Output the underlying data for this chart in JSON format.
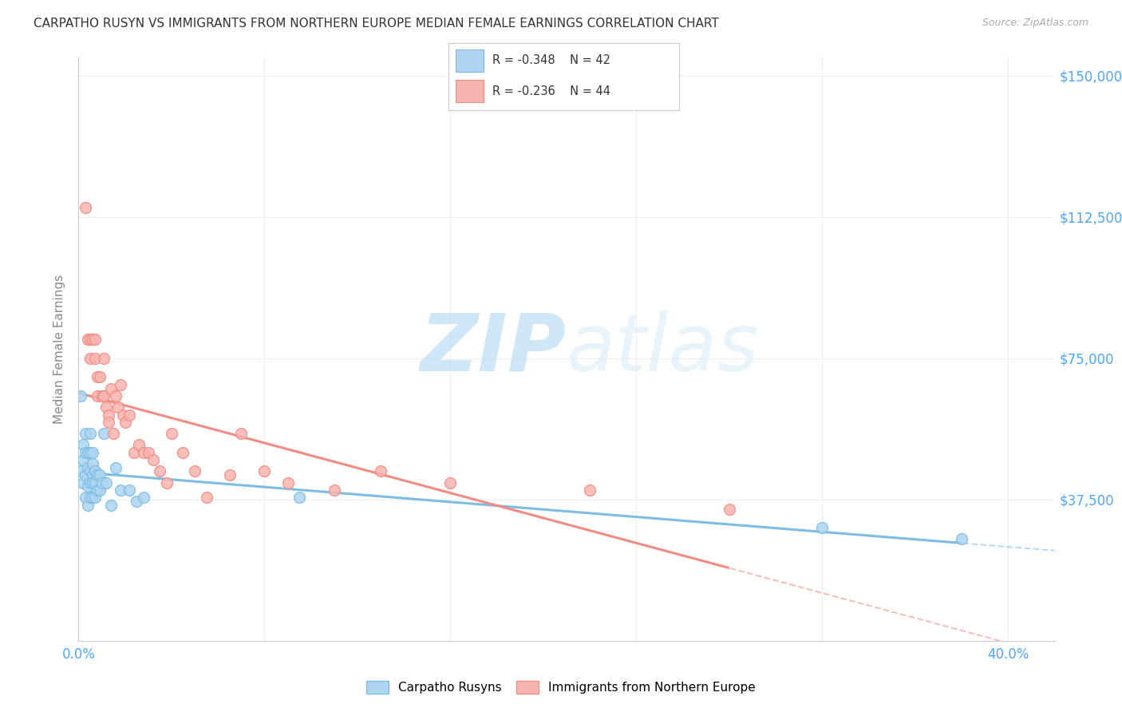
{
  "title": "CARPATHO RUSYN VS IMMIGRANTS FROM NORTHERN EUROPE MEDIAN FEMALE EARNINGS CORRELATION CHART",
  "source": "Source: ZipAtlas.com",
  "ylabel": "Median Female Earnings",
  "xlim": [
    0.0,
    0.42
  ],
  "ylim": [
    0,
    155000
  ],
  "ytick_vals": [
    0,
    37500,
    75000,
    112500,
    150000
  ],
  "ytick_labels": [
    "",
    "$37,500",
    "$75,000",
    "$112,500",
    "$150,000"
  ],
  "xtick_vals": [
    0.0,
    0.08,
    0.16,
    0.24,
    0.32,
    0.4
  ],
  "xtick_labels": [
    "0.0%",
    "",
    "",
    "",
    "",
    "40.0%"
  ],
  "blue_color": "#7bbde4",
  "pink_color": "#f28b82",
  "blue_fill_color": "#aed4f0",
  "pink_fill_color": "#f8b4b0",
  "blue_label": "Carpatho Rusyns",
  "pink_label": "Immigrants from Northern Europe",
  "watermark_color": "#cce8f8",
  "background_color": "#ffffff",
  "grid_color": "#eeeeee",
  "blue_x": [
    0.001,
    0.001,
    0.002,
    0.002,
    0.002,
    0.003,
    0.003,
    0.003,
    0.003,
    0.004,
    0.004,
    0.004,
    0.004,
    0.005,
    0.005,
    0.005,
    0.005,
    0.005,
    0.006,
    0.006,
    0.006,
    0.006,
    0.006,
    0.007,
    0.007,
    0.007,
    0.008,
    0.008,
    0.009,
    0.009,
    0.01,
    0.011,
    0.012,
    0.014,
    0.016,
    0.018,
    0.022,
    0.025,
    0.028,
    0.095,
    0.32,
    0.38
  ],
  "blue_y": [
    65000,
    45000,
    52000,
    48000,
    42000,
    55000,
    50000,
    44000,
    38000,
    50000,
    46000,
    41000,
    36000,
    55000,
    50000,
    45000,
    42000,
    38000,
    50000,
    47000,
    44000,
    42000,
    38000,
    45000,
    42000,
    38000,
    44000,
    40000,
    44000,
    40000,
    42000,
    55000,
    42000,
    36000,
    46000,
    40000,
    40000,
    37000,
    38000,
    38000,
    30000,
    27000
  ],
  "pink_x": [
    0.003,
    0.004,
    0.005,
    0.005,
    0.006,
    0.007,
    0.007,
    0.008,
    0.008,
    0.009,
    0.01,
    0.011,
    0.011,
    0.012,
    0.013,
    0.013,
    0.014,
    0.015,
    0.016,
    0.017,
    0.018,
    0.019,
    0.02,
    0.022,
    0.024,
    0.026,
    0.028,
    0.03,
    0.032,
    0.035,
    0.038,
    0.04,
    0.045,
    0.05,
    0.055,
    0.065,
    0.07,
    0.08,
    0.09,
    0.11,
    0.13,
    0.16,
    0.22,
    0.28
  ],
  "pink_y": [
    115000,
    80000,
    80000,
    75000,
    80000,
    80000,
    75000,
    70000,
    65000,
    70000,
    65000,
    75000,
    65000,
    62000,
    60000,
    58000,
    67000,
    55000,
    65000,
    62000,
    68000,
    60000,
    58000,
    60000,
    50000,
    52000,
    50000,
    50000,
    48000,
    45000,
    42000,
    55000,
    50000,
    45000,
    38000,
    44000,
    55000,
    45000,
    42000,
    40000,
    45000,
    42000,
    40000,
    35000
  ]
}
